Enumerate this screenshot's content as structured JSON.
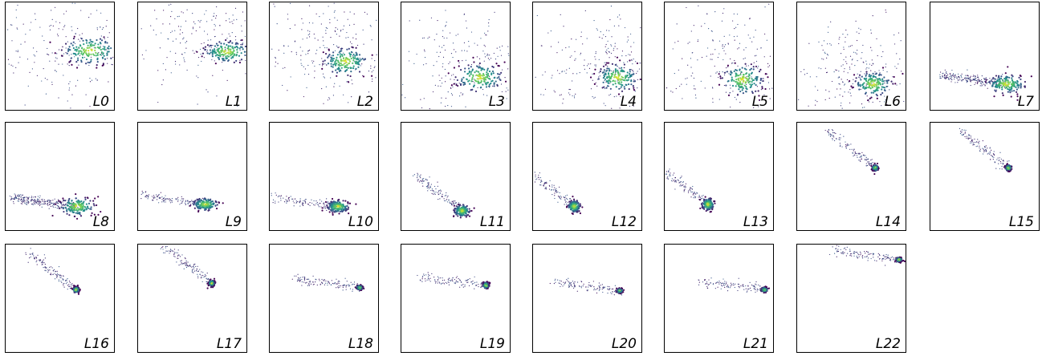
{
  "chart_data": {
    "type": "scatter",
    "title": "",
    "layout": "small multiples, 8 columns x 3 rows",
    "colormap": "viridis density (purple low, yellow high)",
    "panels": [
      {
        "label": "L0",
        "center": [
          0.78,
          0.45
        ],
        "spread": [
          0.35,
          0.18
        ],
        "tail": "wide fan left"
      },
      {
        "label": "L1",
        "center": [
          0.82,
          0.46
        ],
        "spread": [
          0.3,
          0.14
        ],
        "tail": "fan left and up"
      },
      {
        "label": "L2",
        "center": [
          0.7,
          0.55
        ],
        "spread": [
          0.28,
          0.18
        ],
        "tail": "fan left and up"
      },
      {
        "label": "L3",
        "center": [
          0.72,
          0.7
        ],
        "spread": [
          0.3,
          0.18
        ],
        "tail": "fan up-left"
      },
      {
        "label": "L4",
        "center": [
          0.78,
          0.7
        ],
        "spread": [
          0.26,
          0.18
        ],
        "tail": "fan up"
      },
      {
        "label": "L5",
        "center": [
          0.72,
          0.72
        ],
        "spread": [
          0.26,
          0.2
        ],
        "tail": "fan up-left"
      },
      {
        "label": "L6",
        "center": [
          0.7,
          0.76
        ],
        "spread": [
          0.24,
          0.16
        ],
        "tail": "fan up-left"
      },
      {
        "label": "L7",
        "center": [
          0.7,
          0.76
        ],
        "spread": [
          0.24,
          0.12
        ],
        "tail": "streak left"
      },
      {
        "label": "L8",
        "center": [
          0.66,
          0.78
        ],
        "spread": [
          0.22,
          0.12
        ],
        "tail": "streak left"
      },
      {
        "label": "L9",
        "center": [
          0.62,
          0.76
        ],
        "spread": [
          0.16,
          0.08
        ],
        "tail": "streak left"
      },
      {
        "label": "L10",
        "center": [
          0.63,
          0.78
        ],
        "spread": [
          0.14,
          0.08
        ],
        "tail": "streak left"
      },
      {
        "label": "L11",
        "center": [
          0.56,
          0.82
        ],
        "spread": [
          0.1,
          0.08
        ],
        "tail": "streak up-left"
      },
      {
        "label": "L12",
        "center": [
          0.38,
          0.78
        ],
        "spread": [
          0.08,
          0.08
        ],
        "tail": "streak up-left"
      },
      {
        "label": "L13",
        "center": [
          0.4,
          0.76
        ],
        "spread": [
          0.08,
          0.08
        ],
        "tail": "streak up-left"
      },
      {
        "label": "L14",
        "center": [
          0.72,
          0.42
        ],
        "spread": [
          0.04,
          0.04
        ],
        "tail": "streak up-left"
      },
      {
        "label": "L15",
        "center": [
          0.72,
          0.42
        ],
        "spread": [
          0.04,
          0.04
        ],
        "tail": "streak up-left"
      },
      {
        "label": "L16",
        "center": [
          0.65,
          0.42
        ],
        "spread": [
          0.04,
          0.04
        ],
        "tail": "streak up-left"
      },
      {
        "label": "L17",
        "center": [
          0.68,
          0.36
        ],
        "spread": [
          0.04,
          0.04
        ],
        "tail": "streak up-left"
      },
      {
        "label": "L18",
        "center": [
          0.83,
          0.4
        ],
        "spread": [
          0.04,
          0.03
        ],
        "tail": "streak left"
      },
      {
        "label": "L19",
        "center": [
          0.78,
          0.38
        ],
        "spread": [
          0.04,
          0.04
        ],
        "tail": "streak left"
      },
      {
        "label": "L20",
        "center": [
          0.8,
          0.43
        ],
        "spread": [
          0.04,
          0.03
        ],
        "tail": "streak left"
      },
      {
        "label": "L21",
        "center": [
          0.92,
          0.42
        ],
        "spread": [
          0.04,
          0.03
        ],
        "tail": "streak left"
      },
      {
        "label": "L22",
        "center": [
          0.94,
          0.14
        ],
        "spread": [
          0.04,
          0.03
        ],
        "tail": "streak left"
      }
    ]
  }
}
